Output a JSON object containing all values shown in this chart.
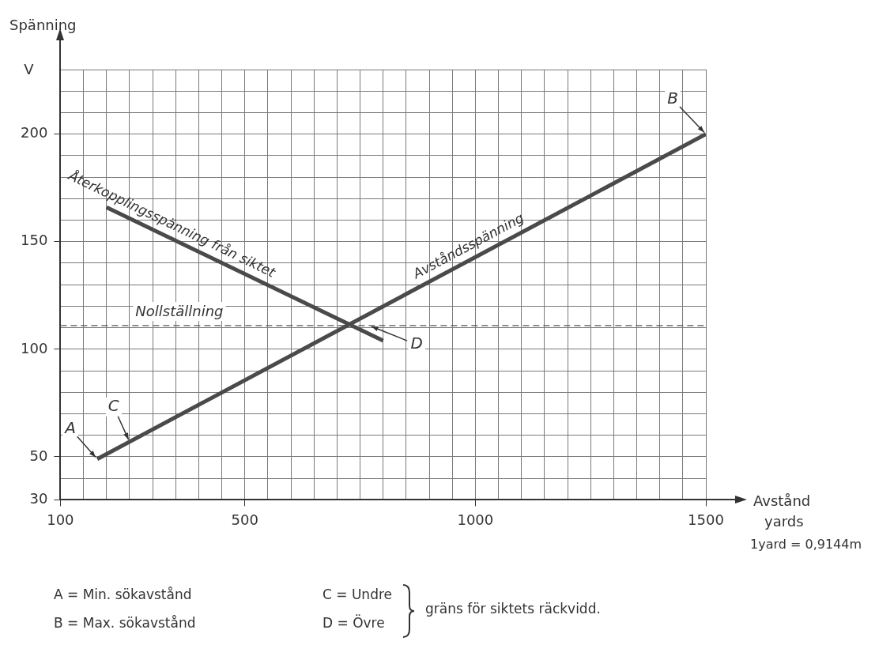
{
  "chart_data": {
    "type": "line",
    "ylabel": "Spänning",
    "xlabel": "Avstånd yards",
    "series": [
      {
        "name": "Återkopplingsspänning från siktet",
        "color": "#4a4a4a",
        "x": [
          200,
          800
        ],
        "values": [
          166,
          104
        ]
      },
      {
        "name": "Avståndsspänning",
        "color": "#4a4a4a",
        "x": [
          180,
          1500
        ],
        "values": [
          49,
          200
        ]
      }
    ],
    "xlim": [
      100,
      1500
    ],
    "xticks": [
      100,
      {
        "value": 150,
        "label": null
      },
      {
        "value": 200,
        "label": null
      },
      {
        "value": 250,
        "label": null
      },
      {
        "value": 300,
        "label": null
      },
      {
        "value": 350,
        "label": null
      },
      {
        "value": 400,
        "label": null
      },
      {
        "value": 450,
        "label": null
      },
      500,
      {
        "value": 550,
        "label": null
      },
      {
        "value": 600,
        "label": null
      },
      {
        "value": 650,
        "label": null
      },
      {
        "value": 700,
        "label": null
      },
      {
        "value": 750,
        "label": null
      },
      {
        "value": 800,
        "label": null
      },
      {
        "value": 850,
        "label": null
      },
      {
        "value": 900,
        "label": null
      },
      {
        "value": 950,
        "label": null
      },
      1000,
      {
        "value": 1050,
        "label": null
      },
      {
        "value": 1100,
        "label": null
      },
      {
        "value": 1150,
        "label": null
      },
      {
        "value": 1200,
        "label": null
      },
      {
        "value": 1250,
        "label": null
      },
      {
        "value": 1300,
        "label": null
      },
      {
        "value": 1350,
        "label": null
      },
      {
        "value": 1400,
        "label": null
      },
      {
        "value": 1450,
        "label": null
      },
      1500
    ],
    "ylim": [
      30,
      230
    ],
    "yticks": [
      30,
      {
        "value": 40,
        "label": null
      },
      50,
      {
        "value": 60,
        "label": null
      },
      {
        "value": 70,
        "label": null
      },
      {
        "value": 80,
        "label": null
      },
      {
        "value": 90,
        "label": null
      },
      100,
      {
        "value": 110,
        "label": null
      },
      {
        "value": 120,
        "label": null
      },
      {
        "value": 130,
        "label": null
      },
      {
        "value": 140,
        "label": null
      },
      150,
      {
        "value": 160,
        "label": null
      },
      {
        "value": 170,
        "label": null
      },
      {
        "value": 180,
        "label": null
      },
      {
        "value": 190,
        "label": null
      },
      200,
      {
        "value": 210,
        "label": null
      },
      {
        "value": 220,
        "label": null
      },
      {
        "value": 230,
        "label": null
      }
    ],
    "ref_lines": [
      {
        "axis": "y",
        "value": 111,
        "label": "Nollställning",
        "line_style": "dashed",
        "color": "#555555"
      }
    ],
    "annotations": [
      "V",
      "1yard = 0,9144m",
      {
        "text": "A",
        "x": 180,
        "y": 49
      },
      {
        "text": "B",
        "x": 1500,
        "y": 200
      },
      {
        "text": "C",
        "x": 250,
        "y": 57
      },
      {
        "text": "D",
        "x": 770,
        "y": 111
      },
      "A = Min. sökavstånd",
      "B = Max. sökavstånd",
      "C = Undre",
      "D = Övre",
      "gräns för siktets räckvidd."
    ],
    "grid": true,
    "legend": false,
    "marker": "none",
    "line_style": "solid"
  }
}
